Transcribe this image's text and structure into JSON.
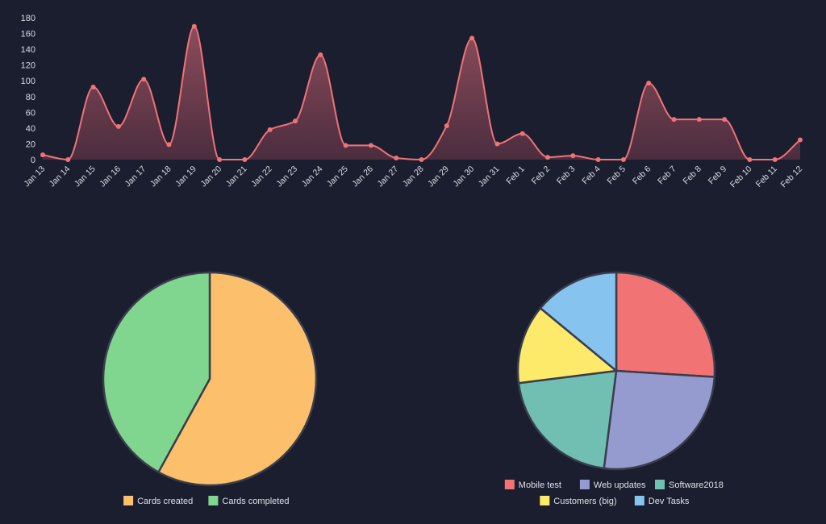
{
  "colors": {
    "background": "#1b1e2e",
    "line": "#f07377",
    "area_top": "#8d4c5b",
    "area_bottom": "#4b2d3e",
    "slice_border": "#3a3d4d",
    "tick_text": "#d9dbe3"
  },
  "chart_data": [
    {
      "type": "area",
      "smooth": true,
      "ylim": [
        0,
        180
      ],
      "yticks": [
        "180",
        "160",
        "140",
        "120",
        "100",
        "80",
        "60",
        "40",
        "20",
        "0"
      ],
      "grid": false,
      "categories": [
        "Jan 13",
        "Jan 14",
        "Jan 15",
        "Jan 16",
        "Jan 17",
        "Jan 18",
        "Jan 19",
        "Jan 20",
        "Jan 21",
        "Jan 22",
        "Jan 23",
        "Jan 24",
        "Jan 25",
        "Jan 26",
        "Jan 27",
        "Jan 28",
        "Jan 29",
        "Jan 30",
        "Jan 31",
        "Feb 1",
        "Feb 2",
        "Feb 3",
        "Feb 4",
        "Feb 5",
        "Feb 6",
        "Feb 7",
        "Feb 8",
        "Feb 9",
        "Feb 10",
        "Feb 11",
        "Feb 12"
      ],
      "values": [
        6,
        0,
        92,
        42,
        102,
        19,
        169,
        0,
        0,
        38,
        49,
        133,
        18,
        18,
        2,
        0,
        43,
        154,
        20,
        33,
        3,
        5,
        0,
        0,
        97,
        51,
        51,
        51,
        0,
        0,
        25
      ]
    },
    {
      "type": "pie",
      "legend_position": "bottom",
      "labels": [
        "Cards created",
        "Cards completed"
      ],
      "values": [
        58,
        42
      ],
      "colors": [
        "#fcc06d",
        "#80d68e"
      ]
    },
    {
      "type": "pie",
      "legend_position": "bottom",
      "labels": [
        "Mobile test",
        "Web updates",
        "Software2018",
        "Customers (big)",
        "Dev Tasks"
      ],
      "values": [
        26,
        26,
        21,
        13,
        14
      ],
      "colors": [
        "#f27373",
        "#959bcf",
        "#70bfb2",
        "#fde96a",
        "#86c3ee"
      ]
    }
  ]
}
